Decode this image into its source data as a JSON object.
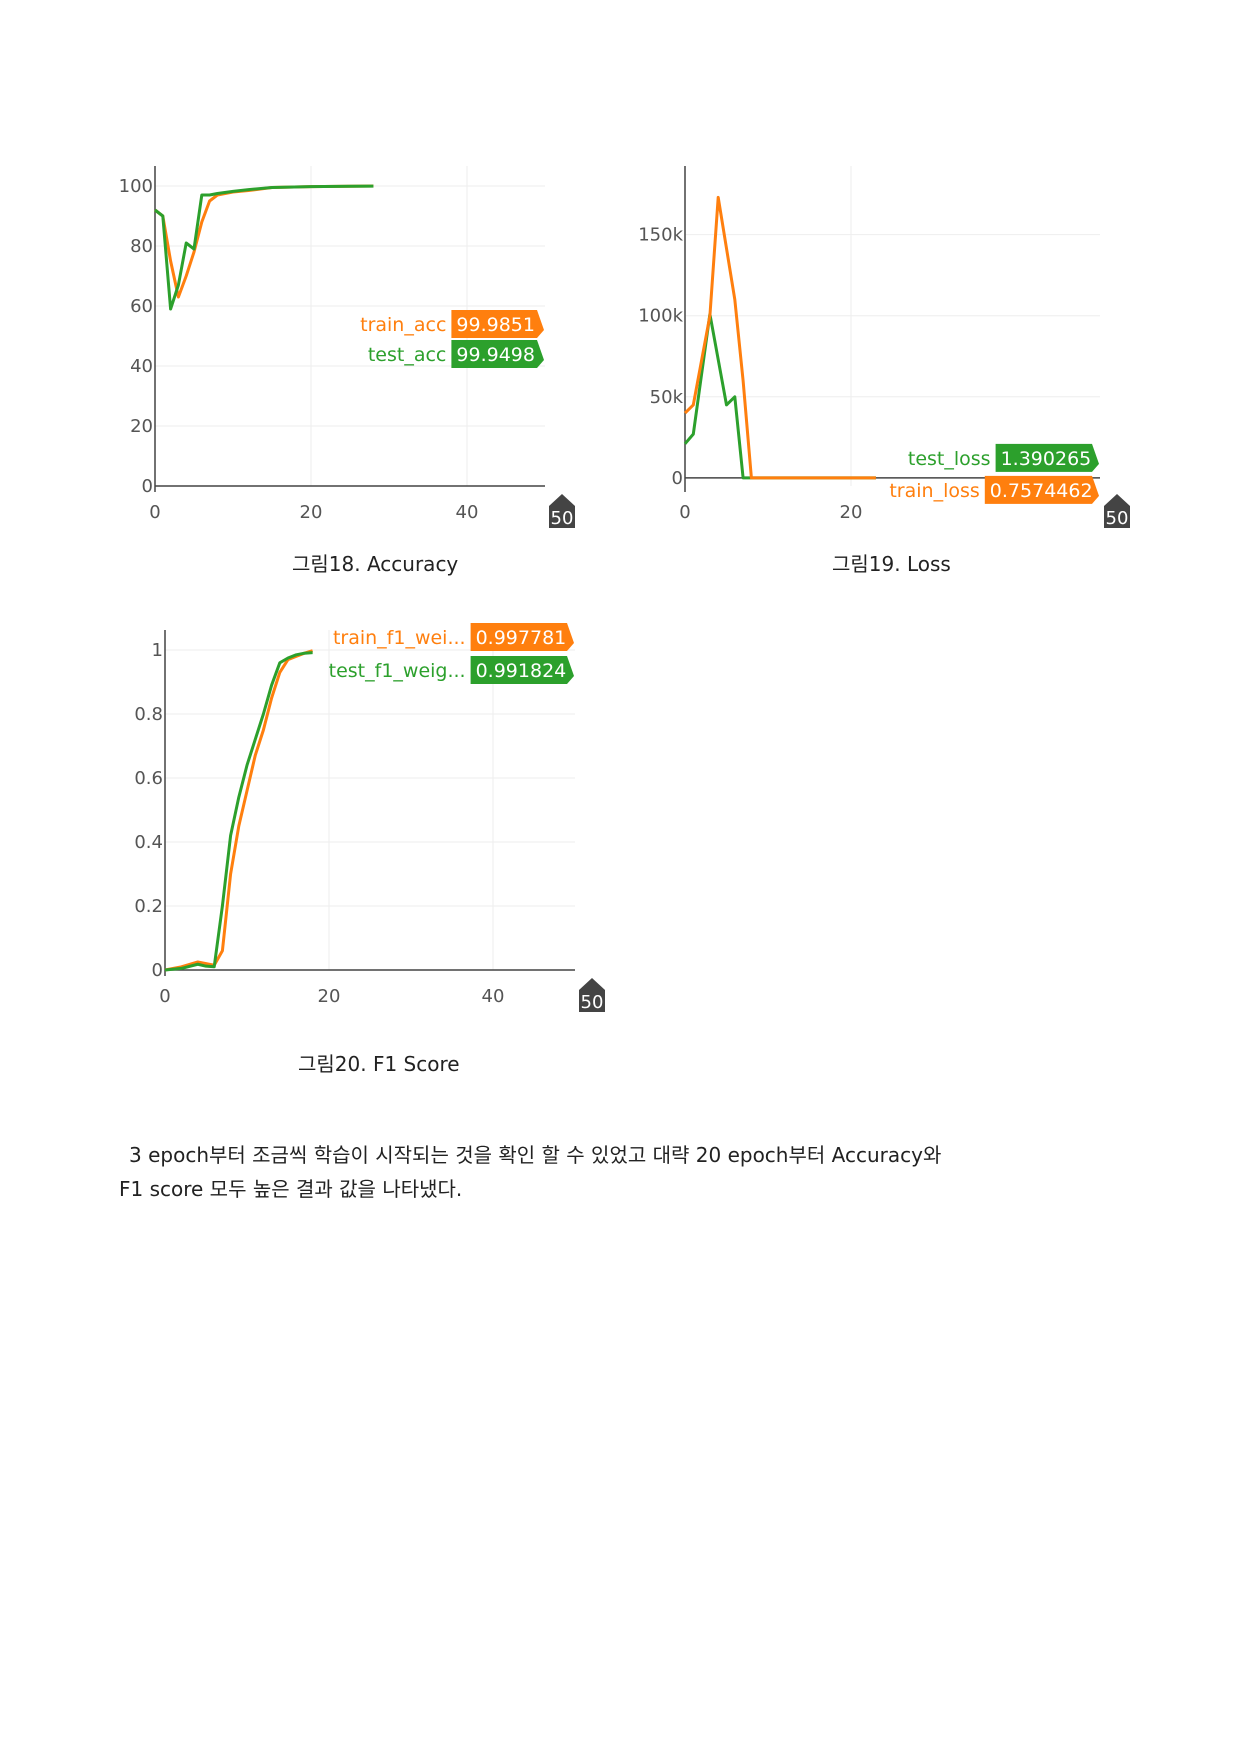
{
  "colors": {
    "train": "#ff7f0e",
    "test": "#2ca02c",
    "axis": "#444444",
    "grid": "#eeeeee",
    "tick": "#555555",
    "end_badge": "#444444"
  },
  "charts": [
    {
      "id": "accuracy",
      "caption": "그림18. Accuracy",
      "chart_data": {
        "type": "line",
        "xlim": [
          0,
          50
        ],
        "ylim": [
          0,
          100
        ],
        "x_ticks": [
          "0",
          "20",
          "40"
        ],
        "x_end_label": "50",
        "y_ticks": [
          "0",
          "20",
          "40",
          "60",
          "80",
          "100"
        ],
        "y_tick_values": [
          0,
          20,
          40,
          60,
          80,
          100
        ],
        "grid": true,
        "series": [
          {
            "name": "train_acc",
            "value_label": "99.9851",
            "x": [
              0,
              1,
              2,
              3,
              4,
              5,
              6,
              7,
              8,
              10,
              12,
              15,
              20,
              25,
              28
            ],
            "y": [
              92,
              90,
              75,
              63,
              70,
              78,
              88,
              95,
              97,
              98,
              98.5,
              99.5,
              99.8,
              99.9,
              99.98
            ]
          },
          {
            "name": "test_acc",
            "value_label": "99.9498",
            "x": [
              0,
              1,
              2,
              3,
              4,
              5,
              6,
              7,
              8,
              10,
              12,
              15,
              20,
              25,
              28
            ],
            "y": [
              92,
              90,
              59,
              67,
              81,
              79,
              97,
              97,
              97.5,
              98.2,
              98.8,
              99.5,
              99.8,
              99.9,
              99.95
            ]
          }
        ]
      }
    },
    {
      "id": "loss",
      "caption": "그림19. Loss",
      "chart_data": {
        "type": "line",
        "xlim": [
          0,
          50
        ],
        "ylim": [
          -5000,
          180000
        ],
        "x_ticks": [
          "0",
          "20"
        ],
        "x_end_label": "50",
        "y_ticks": [
          "0",
          "50k",
          "100k",
          "150k"
        ],
        "y_tick_values": [
          0,
          50000,
          100000,
          150000
        ],
        "grid": true,
        "series": [
          {
            "name": "test_loss",
            "value_label": "1.390265",
            "x": [
              0,
              1,
              3,
              5,
              6,
              7,
              20,
              23
            ],
            "y": [
              21000,
              27000,
              101000,
              45000,
              50000,
              0,
              0,
              0
            ]
          },
          {
            "name": "train_loss",
            "value_label": "0.7574462",
            "x": [
              0,
              1,
              3,
              4,
              6,
              7,
              8,
              20,
              23
            ],
            "y": [
              40000,
              45000,
              100000,
              173000,
              110000,
              60000,
              0,
              0,
              0
            ]
          }
        ]
      }
    },
    {
      "id": "f1",
      "caption": "그림20. F1 Score",
      "chart_data": {
        "type": "line",
        "xlim": [
          0,
          50
        ],
        "ylim": [
          0,
          1
        ],
        "x_ticks": [
          "0",
          "20",
          "40"
        ],
        "x_end_label": "50",
        "y_ticks": [
          "0",
          "0.2",
          "0.4",
          "0.6",
          "0.8",
          "1"
        ],
        "y_tick_values": [
          0,
          0.2,
          0.4,
          0.6,
          0.8,
          1
        ],
        "grid": true,
        "series": [
          {
            "name": "train_f1_wei...",
            "value_label": "0.997781",
            "x": [
              0,
              2,
              4,
              5,
              6,
              7,
              8,
              9,
              10,
              11,
              12,
              13,
              14,
              15,
              16,
              17,
              18
            ],
            "y": [
              0,
              0.01,
              0.025,
              0.02,
              0.015,
              0.06,
              0.3,
              0.45,
              0.56,
              0.67,
              0.75,
              0.85,
              0.93,
              0.97,
              0.98,
              0.99,
              0.9978
            ]
          },
          {
            "name": "test_f1_weig...",
            "value_label": "0.991824",
            "x": [
              0,
              2,
              4,
              5,
              6,
              7,
              8,
              9,
              10,
              11,
              12,
              13,
              14,
              15,
              16,
              17,
              18
            ],
            "y": [
              0,
              0.005,
              0.018,
              0.012,
              0.01,
              0.2,
              0.42,
              0.54,
              0.64,
              0.72,
              0.8,
              0.89,
              0.96,
              0.975,
              0.985,
              0.99,
              0.9918
            ]
          }
        ]
      }
    }
  ],
  "body": {
    "line1": "3 epoch부터 조금씩 학습이 시작되는 것을 확인 할 수 있었고 대략 20 epoch부터 Accuracy와",
    "line2": "F1 score 모두 높은 결과 값을 나타냈다."
  }
}
